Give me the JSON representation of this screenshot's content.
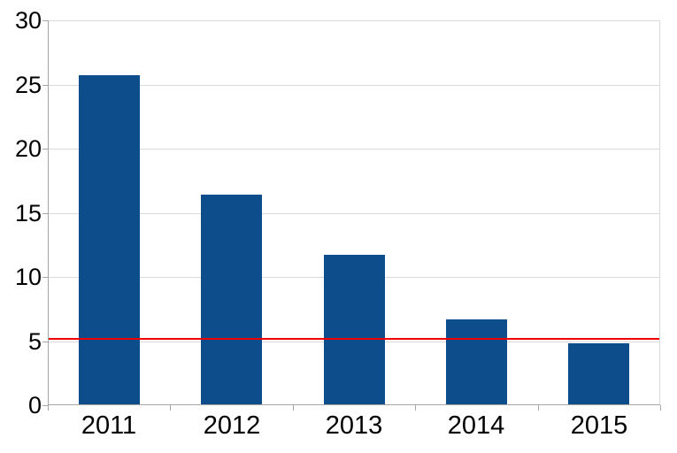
{
  "chart_data": {
    "type": "bar",
    "title": "",
    "xlabel": "",
    "ylabel": "",
    "categories": [
      "2011",
      "2012",
      "2013",
      "2014",
      "2015"
    ],
    "values": [
      25.7,
      16.4,
      11.7,
      6.7,
      4.8
    ],
    "ylim": [
      0,
      30
    ],
    "y_ticks": [
      0,
      5,
      10,
      15,
      20,
      25,
      30
    ],
    "grid": "horizontal",
    "legend": "none",
    "threshold_line": {
      "value": 5.2,
      "color": "#f20000"
    },
    "bar_color": "#0e4d8c",
    "grid_color": "#d9d9d9",
    "axis_color": "#a6a6a6",
    "label_color": "#000000",
    "background_color": "#ffffff"
  }
}
